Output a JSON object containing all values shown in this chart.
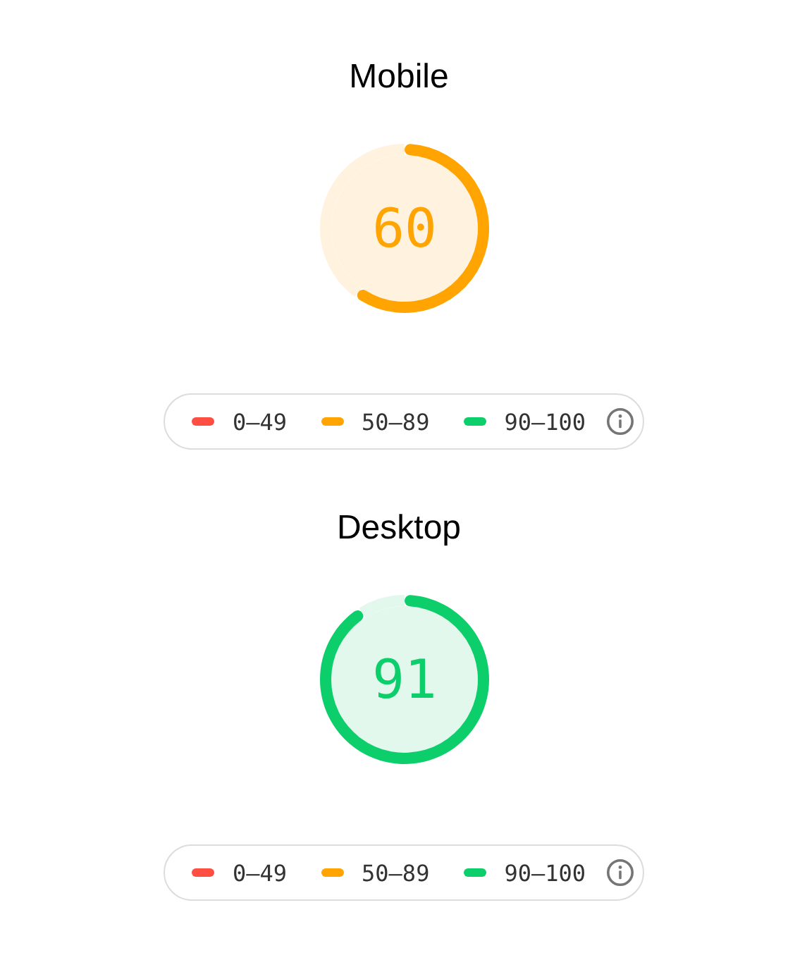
{
  "chart_data": [
    {
      "type": "donut",
      "title": "Mobile",
      "categories": [
        null,
        null
      ],
      "values": [
        60,
        40
      ],
      "colors": [
        "#ffa400",
        "#fff3e0"
      ],
      "annotations": [
        "60",
        "0–49",
        "50–89",
        "90–100"
      ]
    },
    {
      "type": "donut",
      "title": "Desktop",
      "categories": [
        null,
        null
      ],
      "values": [
        91,
        9
      ],
      "colors": [
        "#0cce6b",
        "#e3f8ed"
      ],
      "annotations": [
        "91",
        "0–49",
        "50–89",
        "90–100"
      ]
    }
  ]
}
